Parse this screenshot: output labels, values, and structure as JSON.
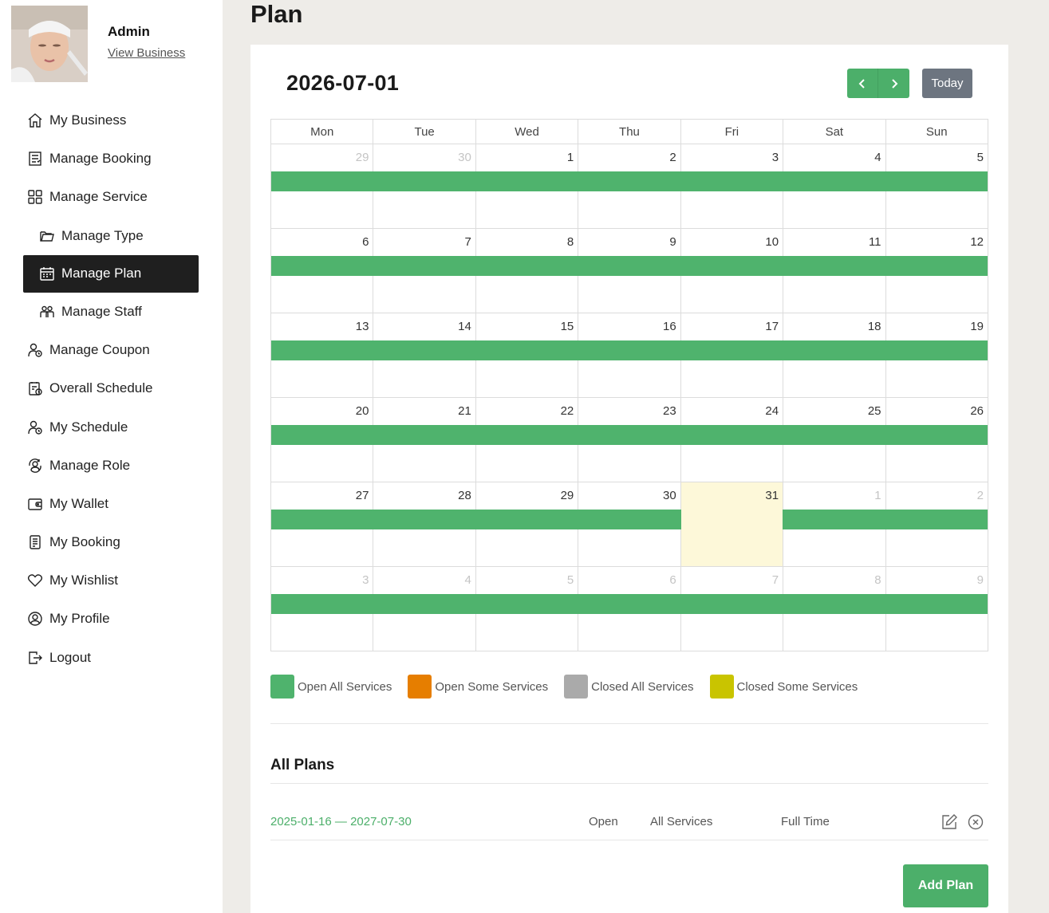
{
  "profile": {
    "name": "Admin",
    "link": "View Business"
  },
  "nav": [
    {
      "label": "My Business",
      "icon": "home-icon",
      "sub": false,
      "active": false
    },
    {
      "label": "Manage Booking",
      "icon": "booking-list-icon",
      "sub": false,
      "active": false
    },
    {
      "label": "Manage Service",
      "icon": "grid-icon",
      "sub": false,
      "active": false
    },
    {
      "label": "Manage Type",
      "icon": "folder-icon",
      "sub": true,
      "active": false
    },
    {
      "label": "Manage Plan",
      "icon": "calendar-icon",
      "sub": true,
      "active": true
    },
    {
      "label": "Manage Staff",
      "icon": "staff-icon",
      "sub": true,
      "active": false
    },
    {
      "label": "Manage Coupon",
      "icon": "user-clock-icon",
      "sub": false,
      "active": false
    },
    {
      "label": "Overall Schedule",
      "icon": "schedule-icon",
      "sub": false,
      "active": false
    },
    {
      "label": "My Schedule",
      "icon": "user-clock-icon",
      "sub": false,
      "active": false
    },
    {
      "label": "Manage Role",
      "icon": "role-icon",
      "sub": false,
      "active": false
    },
    {
      "label": "My Wallet",
      "icon": "wallet-icon",
      "sub": false,
      "active": false
    },
    {
      "label": "My Booking",
      "icon": "document-icon",
      "sub": false,
      "active": false
    },
    {
      "label": "My Wishlist",
      "icon": "heart-icon",
      "sub": false,
      "active": false
    },
    {
      "label": "My Profile",
      "icon": "user-circle-icon",
      "sub": false,
      "active": false
    },
    {
      "label": "Logout",
      "icon": "logout-icon",
      "sub": false,
      "active": false
    }
  ],
  "page": {
    "title": "Plan"
  },
  "calendar": {
    "title": "2026-07-01",
    "today_label": "Today",
    "weekdays": [
      "Mon",
      "Tue",
      "Wed",
      "Thu",
      "Fri",
      "Sat",
      "Sun"
    ],
    "weeks": [
      [
        {
          "d": "29",
          "o": true
        },
        {
          "d": "30",
          "o": true
        },
        {
          "d": "1"
        },
        {
          "d": "2"
        },
        {
          "d": "3"
        },
        {
          "d": "4"
        },
        {
          "d": "5"
        }
      ],
      [
        {
          "d": "6"
        },
        {
          "d": "7"
        },
        {
          "d": "8"
        },
        {
          "d": "9"
        },
        {
          "d": "10"
        },
        {
          "d": "11"
        },
        {
          "d": "12"
        }
      ],
      [
        {
          "d": "13"
        },
        {
          "d": "14"
        },
        {
          "d": "15"
        },
        {
          "d": "16"
        },
        {
          "d": "17"
        },
        {
          "d": "18"
        },
        {
          "d": "19"
        }
      ],
      [
        {
          "d": "20"
        },
        {
          "d": "21"
        },
        {
          "d": "22"
        },
        {
          "d": "23"
        },
        {
          "d": "24"
        },
        {
          "d": "25"
        },
        {
          "d": "26"
        }
      ],
      [
        {
          "d": "27"
        },
        {
          "d": "28"
        },
        {
          "d": "29"
        },
        {
          "d": "30"
        },
        {
          "d": "31",
          "today": true
        },
        {
          "d": "1",
          "o": true
        },
        {
          "d": "2",
          "o": true
        }
      ],
      [
        {
          "d": "3",
          "o": true
        },
        {
          "d": "4",
          "o": true
        },
        {
          "d": "5",
          "o": true
        },
        {
          "d": "6",
          "o": true
        },
        {
          "d": "7",
          "o": true
        },
        {
          "d": "8",
          "o": true
        },
        {
          "d": "9",
          "o": true
        }
      ]
    ],
    "plan_bar_color": "#4fb36d"
  },
  "legend": [
    {
      "label": "Open All Services",
      "color": "#4fb36d"
    },
    {
      "label": "Open Some Services",
      "color": "#e67e00"
    },
    {
      "label": "Closed All Services",
      "color": "#aaaaaa"
    },
    {
      "label": "Closed Some Services",
      "color": "#c9c400"
    }
  ],
  "plans": {
    "title": "All Plans",
    "rows": [
      {
        "range": "2025-01-16 — 2027-07-30",
        "status": "Open",
        "services": "All Services",
        "time": "Full Time"
      }
    ],
    "add_label": "Add Plan"
  }
}
